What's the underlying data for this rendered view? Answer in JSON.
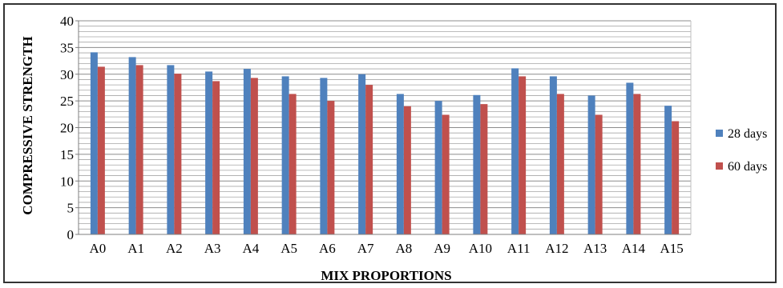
{
  "chart_data": {
    "type": "bar",
    "title": "",
    "xlabel": "MIX PROPORTIONS",
    "ylabel": "COMPRESSIVE STRENGTH",
    "categories": [
      "A0",
      "A1",
      "A2",
      "A3",
      "A4",
      "A5",
      "A6",
      "A7",
      "A8",
      "A9",
      "A10",
      "A11",
      "A12",
      "A13",
      "A14",
      "A15"
    ],
    "series": [
      {
        "name": "28 days",
        "color": "#4f81bd",
        "values": [
          34.1,
          33.2,
          31.7,
          30.5,
          31.0,
          29.6,
          29.3,
          30.0,
          26.3,
          25.0,
          26.1,
          31.1,
          29.6,
          26.0,
          28.4,
          24.1
        ]
      },
      {
        "name": "60 days",
        "color": "#c0504d",
        "values": [
          31.4,
          31.7,
          30.1,
          28.7,
          29.3,
          26.3,
          25.0,
          28.0,
          24.0,
          22.4,
          24.4,
          29.6,
          26.3,
          22.4,
          26.3,
          21.2
        ]
      }
    ],
    "ylim": [
      0,
      40
    ],
    "yticks": [
      0,
      5,
      10,
      15,
      20,
      25,
      30,
      35,
      40
    ],
    "minor_grid_step": 1,
    "grid": true,
    "legend_position": "right"
  }
}
